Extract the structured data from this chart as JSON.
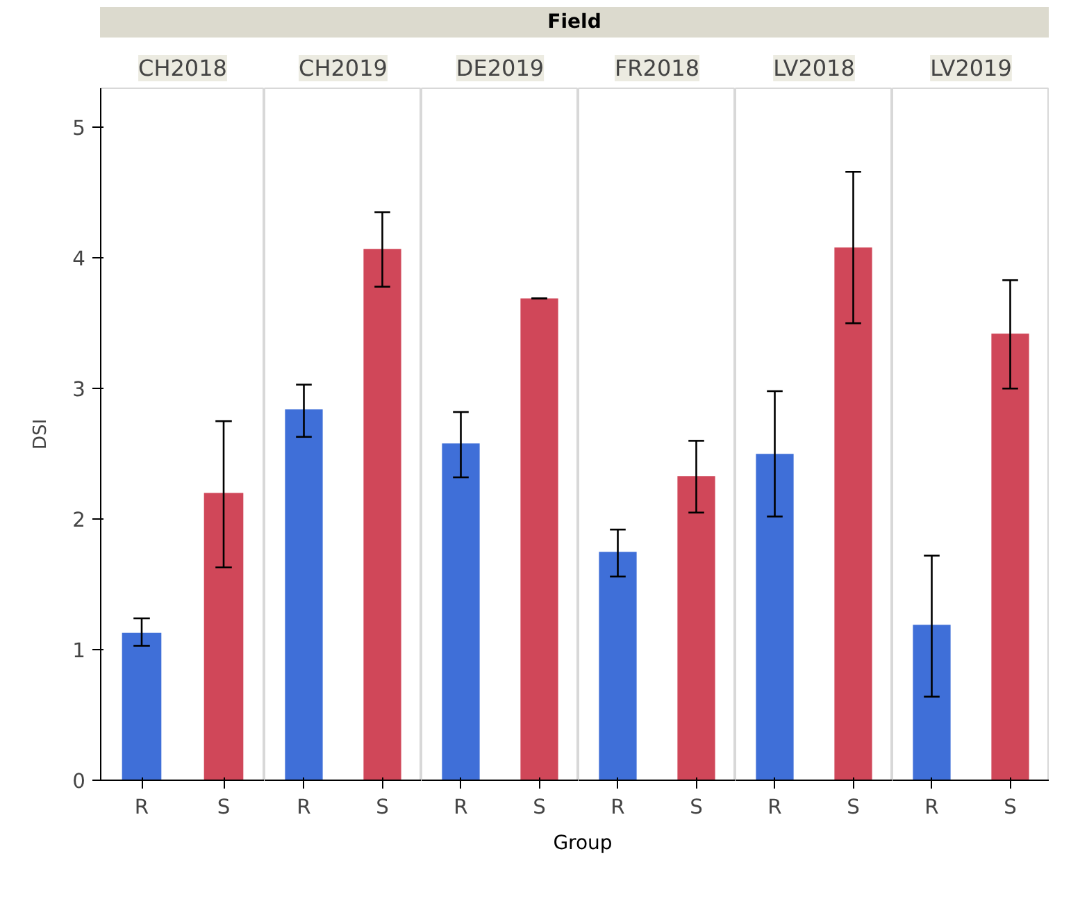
{
  "chart_data": [
    {
      "type": "bar",
      "title": "CH2018",
      "ylabel": "DSI",
      "annotations": [
        "Field"
      ],
      "categories": [
        "R",
        "S"
      ],
      "values": [
        1.13,
        2.2
      ],
      "colors": [
        "#3f6fd8",
        "#d04759"
      ],
      "errors": [
        [
          1.03,
          1.24
        ],
        [
          1.63,
          2.75
        ]
      ],
      "ylim": [
        0,
        5.3
      ],
      "yticks": [
        0,
        1,
        2,
        3,
        4,
        5
      ],
      "grid": false
    },
    {
      "type": "bar",
      "title": "CH2019",
      "categories": [
        "R",
        "S"
      ],
      "values": [
        2.84,
        4.07
      ],
      "colors": [
        "#3f6fd8",
        "#d04759"
      ],
      "errors": [
        [
          2.63,
          3.03
        ],
        [
          3.78,
          4.35
        ]
      ],
      "ylim": [
        0,
        5.3
      ],
      "yticks": [
        0,
        1,
        2,
        3,
        4,
        5
      ],
      "tick_labels": "x",
      "grid": false
    },
    {
      "type": "bar",
      "title": "DE2019",
      "xlabel": "Group",
      "categories": [
        "R",
        "S"
      ],
      "values": [
        2.58,
        3.69
      ],
      "colors": [
        "#3f6fd8",
        "#d04759"
      ],
      "errors": [
        [
          2.32,
          2.82
        ],
        [
          3.69,
          3.69
        ]
      ],
      "ylim": [
        0,
        5.3
      ],
      "yticks": [
        0,
        1,
        2,
        3,
        4,
        5
      ],
      "tick_labels": "x",
      "grid": false
    },
    {
      "type": "bar",
      "title": "FR2018",
      "categories": [
        "R",
        "S"
      ],
      "values": [
        1.75,
        2.33
      ],
      "colors": [
        "#3f6fd8",
        "#d04759"
      ],
      "errors": [
        [
          1.56,
          1.92
        ],
        [
          2.05,
          2.6
        ]
      ],
      "ylim": [
        0,
        5.3
      ],
      "yticks": [
        0,
        1,
        2,
        3,
        4,
        5
      ],
      "tick_labels": "x",
      "grid": false
    },
    {
      "type": "bar",
      "title": "LV2018",
      "categories": [
        "R",
        "S"
      ],
      "values": [
        2.5,
        4.08
      ],
      "colors": [
        "#3f6fd8",
        "#d04759"
      ],
      "errors": [
        [
          2.02,
          2.98
        ],
        [
          3.5,
          4.66
        ]
      ],
      "ylim": [
        0,
        5.3
      ],
      "yticks": [
        0,
        1,
        2,
        3,
        4,
        5
      ],
      "tick_labels": "x",
      "grid": false
    },
    {
      "type": "bar",
      "title": "LV2019",
      "categories": [
        "R",
        "S"
      ],
      "values": [
        1.19,
        3.42
      ],
      "colors": [
        "#3f6fd8",
        "#d04759"
      ],
      "errors": [
        [
          0.64,
          1.72
        ],
        [
          3.0,
          3.83
        ]
      ],
      "ylim": [
        0,
        5.3
      ],
      "yticks": [
        0,
        1,
        2,
        3,
        4,
        5
      ],
      "tick_labels": "x",
      "grid": false
    }
  ]
}
